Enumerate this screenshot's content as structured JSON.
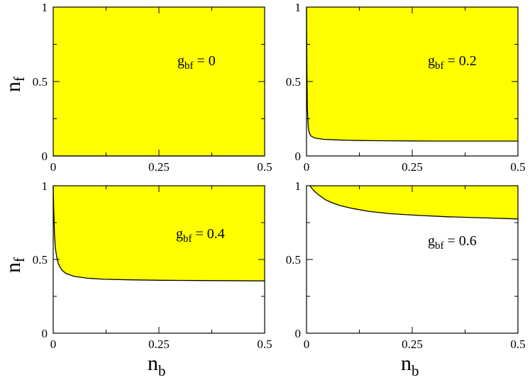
{
  "chart_data": [
    {
      "type": "area",
      "annotation": {
        "main": "g",
        "sub": "bf",
        "rest": " = 0"
      },
      "xlim": [
        0,
        0.5
      ],
      "ylim": [
        0,
        1
      ],
      "x_ticks": [
        0,
        0.25,
        0.5
      ],
      "y_ticks": [
        0,
        0.5,
        1
      ],
      "x_tick_labels": [
        "0",
        "0.25",
        "0.5"
      ],
      "y_tick_labels": [
        "0",
        "0.5",
        "1"
      ],
      "fill_color": "#ffff00",
      "boundary": {
        "x": [
          0,
          0.5
        ],
        "y": [
          0,
          0
        ]
      }
    },
    {
      "type": "area",
      "annotation": {
        "main": "g",
        "sub": "bf",
        "rest": " = 0.2"
      },
      "xlim": [
        0,
        0.5
      ],
      "ylim": [
        0,
        1
      ],
      "x_ticks": [
        0,
        0.25,
        0.5
      ],
      "y_ticks": [
        0,
        0.5,
        1
      ],
      "x_tick_labels": [
        "0",
        "0.25",
        "0.5"
      ],
      "y_tick_labels": [
        "0",
        "0.5",
        "1"
      ],
      "fill_color": "#ffff00",
      "boundary": {
        "x": [
          0,
          0.001,
          0.002,
          0.004,
          0.006,
          0.01,
          0.02,
          0.04,
          0.07,
          0.1,
          0.15,
          0.2,
          0.25,
          0.3,
          0.4,
          0.5
        ],
        "y": [
          1,
          0.55,
          0.32,
          0.2,
          0.16,
          0.135,
          0.12,
          0.112,
          0.108,
          0.105,
          0.103,
          0.102,
          0.101,
          0.1,
          0.1,
          0.1
        ]
      }
    },
    {
      "type": "area",
      "annotation": {
        "main": "g",
        "sub": "bf",
        "rest": " = 0.4"
      },
      "xlim": [
        0,
        0.5
      ],
      "ylim": [
        0,
        1
      ],
      "x_ticks": [
        0,
        0.25,
        0.5
      ],
      "y_ticks": [
        0,
        0.5,
        1
      ],
      "x_tick_labels": [
        "0",
        "0.25",
        "0.5"
      ],
      "y_tick_labels": [
        "0",
        "0.5",
        "1"
      ],
      "fill_color": "#ffff00",
      "boundary": {
        "x": [
          0,
          0.001,
          0.003,
          0.005,
          0.008,
          0.012,
          0.02,
          0.03,
          0.05,
          0.08,
          0.12,
          0.18,
          0.25,
          0.35,
          0.5
        ],
        "y": [
          1,
          0.85,
          0.67,
          0.58,
          0.52,
          0.47,
          0.43,
          0.405,
          0.385,
          0.373,
          0.366,
          0.362,
          0.359,
          0.357,
          0.355
        ]
      }
    },
    {
      "type": "area",
      "annotation": {
        "main": "g",
        "sub": "bf",
        "rest": " = 0.6"
      },
      "xlim": [
        0,
        0.5
      ],
      "ylim": [
        0,
        1
      ],
      "x_ticks": [
        0,
        0.25,
        0.5
      ],
      "y_ticks": [
        0,
        0.5,
        1
      ],
      "x_tick_labels": [
        "0",
        "0.25",
        "0.5"
      ],
      "y_tick_labels": [
        "0",
        "0.5",
        "1"
      ],
      "fill_color": "#ffff00",
      "boundary": {
        "x": [
          0.008,
          0.012,
          0.016,
          0.022,
          0.028,
          0.035,
          0.045,
          0.06,
          0.08,
          0.11,
          0.15,
          0.2,
          0.26,
          0.33,
          0.41,
          0.5
        ],
        "y": [
          1,
          0.985,
          0.97,
          0.955,
          0.94,
          0.925,
          0.905,
          0.885,
          0.865,
          0.845,
          0.825,
          0.81,
          0.8,
          0.79,
          0.783,
          0.775
        ]
      }
    }
  ],
  "axes": {
    "y_title": {
      "main": "n",
      "sub": "f"
    },
    "x_title": {
      "main": "n",
      "sub": "b"
    }
  }
}
